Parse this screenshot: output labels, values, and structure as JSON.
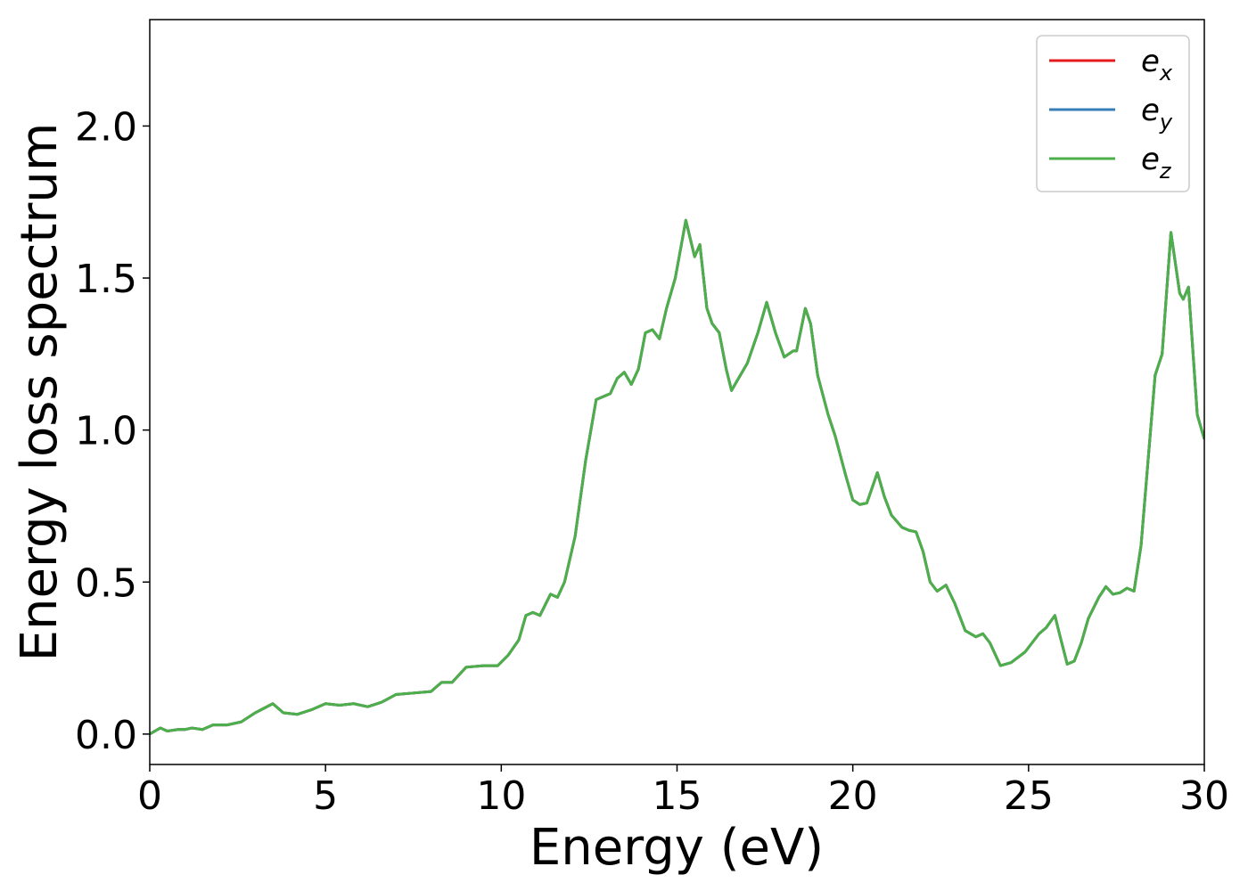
{
  "chart_data": {
    "type": "line",
    "xlabel": "Energy (eV)",
    "ylabel": "Energy loss spectrum",
    "xlim": [
      0,
      30
    ],
    "ylim": [
      -0.1,
      2.35
    ],
    "xticks": [
      0,
      5,
      10,
      15,
      20,
      25,
      30
    ],
    "yticks": [
      {
        "value": 0,
        "label": "0.0"
      },
      0.5,
      {
        "value": 1,
        "label": "1.0"
      },
      1.5,
      {
        "value": 2,
        "label": "2.0"
      }
    ],
    "grid": false,
    "legend": "upper right",
    "x": [
      0,
      0.3,
      0.5,
      0.8,
      1.0,
      1.2,
      1.5,
      1.8,
      2.2,
      2.6,
      3.0,
      3.5,
      3.8,
      4.2,
      4.6,
      5.0,
      5.4,
      5.8,
      6.2,
      6.6,
      7.0,
      7.5,
      8.0,
      8.3,
      8.6,
      9.0,
      9.5,
      9.9,
      10.2,
      10.5,
      10.7,
      10.9,
      11.1,
      11.4,
      11.6,
      11.8,
      12.1,
      12.4,
      12.7,
      12.9,
      13.1,
      13.3,
      13.5,
      13.7,
      13.9,
      14.1,
      14.3,
      14.5,
      14.7,
      14.95,
      15.25,
      15.5,
      15.65,
      15.85,
      16.0,
      16.2,
      16.4,
      16.55,
      16.7,
      17.0,
      17.3,
      17.55,
      17.8,
      18.05,
      18.3,
      18.4,
      18.65,
      18.8,
      19.0,
      19.3,
      19.5,
      19.8,
      20.0,
      20.2,
      20.4,
      20.7,
      20.9,
      21.1,
      21.4,
      21.6,
      21.8,
      22.0,
      22.2,
      22.4,
      22.65,
      22.9,
      23.2,
      23.5,
      23.7,
      23.9,
      24.2,
      24.5,
      24.9,
      25.3,
      25.5,
      25.75,
      25.9,
      26.1,
      26.3,
      26.5,
      26.7,
      27.0,
      27.2,
      27.4,
      27.6,
      27.8,
      28.0,
      28.2,
      28.4,
      28.6,
      28.8,
      29.05,
      29.3,
      29.4,
      29.55,
      29.8,
      30.0
    ],
    "series": [
      {
        "name": "e_x",
        "color": "#e41a1c",
        "values": [
          0,
          0.02,
          0.01,
          0.015,
          0.015,
          0.02,
          0.015,
          0.03,
          0.03,
          0.04,
          0.07,
          0.1,
          0.07,
          0.065,
          0.08,
          0.1,
          0.095,
          0.1,
          0.09,
          0.105,
          0.13,
          0.135,
          0.14,
          0.17,
          0.17,
          0.22,
          0.225,
          0.225,
          0.26,
          0.31,
          0.39,
          0.4,
          0.39,
          0.46,
          0.45,
          0.5,
          0.65,
          0.9,
          1.1,
          1.11,
          1.12,
          1.17,
          1.19,
          1.15,
          1.2,
          1.32,
          1.33,
          1.3,
          1.4,
          1.5,
          1.69,
          1.57,
          1.61,
          1.4,
          1.35,
          1.32,
          1.2,
          1.13,
          1.16,
          1.22,
          1.32,
          1.42,
          1.32,
          1.24,
          1.26,
          1.26,
          1.4,
          1.35,
          1.18,
          1.05,
          0.98,
          0.85,
          0.77,
          0.755,
          0.76,
          0.86,
          0.78,
          0.72,
          0.68,
          0.67,
          0.665,
          0.6,
          0.5,
          0.47,
          0.49,
          0.43,
          0.34,
          0.32,
          0.33,
          0.3,
          0.225,
          0.235,
          0.27,
          0.33,
          0.35,
          0.39,
          0.32,
          0.23,
          0.24,
          0.3,
          0.38,
          0.45,
          0.485,
          0.46,
          0.465,
          0.48,
          0.47,
          0.62,
          0.9,
          1.18,
          1.25,
          1.65,
          1.45,
          1.43,
          1.47,
          1.05,
          0.97
        ]
      },
      {
        "name": "e_y",
        "color": "#377eb8",
        "values": [
          0,
          0.02,
          0.01,
          0.015,
          0.015,
          0.02,
          0.015,
          0.03,
          0.03,
          0.04,
          0.07,
          0.1,
          0.07,
          0.065,
          0.08,
          0.1,
          0.095,
          0.1,
          0.09,
          0.105,
          0.13,
          0.135,
          0.14,
          0.17,
          0.17,
          0.22,
          0.225,
          0.225,
          0.26,
          0.31,
          0.39,
          0.4,
          0.39,
          0.46,
          0.45,
          0.5,
          0.65,
          0.9,
          1.1,
          1.11,
          1.12,
          1.17,
          1.19,
          1.15,
          1.2,
          1.32,
          1.33,
          1.3,
          1.4,
          1.5,
          1.69,
          1.57,
          1.61,
          1.4,
          1.35,
          1.32,
          1.2,
          1.13,
          1.16,
          1.22,
          1.32,
          1.42,
          1.32,
          1.24,
          1.26,
          1.26,
          1.4,
          1.35,
          1.18,
          1.05,
          0.98,
          0.85,
          0.77,
          0.755,
          0.76,
          0.86,
          0.78,
          0.72,
          0.68,
          0.67,
          0.665,
          0.6,
          0.5,
          0.47,
          0.49,
          0.43,
          0.34,
          0.32,
          0.33,
          0.3,
          0.225,
          0.235,
          0.27,
          0.33,
          0.35,
          0.39,
          0.32,
          0.23,
          0.24,
          0.3,
          0.38,
          0.45,
          0.485,
          0.46,
          0.465,
          0.48,
          0.47,
          0.62,
          0.9,
          1.18,
          1.25,
          1.65,
          1.45,
          1.43,
          1.47,
          1.05,
          0.97
        ]
      },
      {
        "name": "e_z",
        "color": "#4daf4a",
        "values": [
          0,
          0.02,
          0.01,
          0.015,
          0.015,
          0.02,
          0.015,
          0.03,
          0.03,
          0.04,
          0.07,
          0.1,
          0.07,
          0.065,
          0.08,
          0.1,
          0.095,
          0.1,
          0.09,
          0.105,
          0.13,
          0.135,
          0.14,
          0.17,
          0.17,
          0.22,
          0.225,
          0.225,
          0.26,
          0.31,
          0.39,
          0.4,
          0.39,
          0.46,
          0.45,
          0.5,
          0.65,
          0.9,
          1.1,
          1.11,
          1.12,
          1.17,
          1.19,
          1.15,
          1.2,
          1.32,
          1.33,
          1.3,
          1.4,
          1.5,
          1.69,
          1.57,
          1.61,
          1.4,
          1.35,
          1.32,
          1.2,
          1.13,
          1.16,
          1.22,
          1.32,
          1.42,
          1.32,
          1.24,
          1.26,
          1.26,
          1.4,
          1.35,
          1.18,
          1.05,
          0.98,
          0.85,
          0.77,
          0.755,
          0.76,
          0.86,
          0.78,
          0.72,
          0.68,
          0.67,
          0.665,
          0.6,
          0.5,
          0.47,
          0.49,
          0.43,
          0.34,
          0.32,
          0.33,
          0.3,
          0.225,
          0.235,
          0.27,
          0.33,
          0.35,
          0.39,
          0.32,
          0.23,
          0.24,
          0.3,
          0.38,
          0.45,
          0.485,
          0.46,
          0.465,
          0.48,
          0.47,
          0.62,
          0.9,
          1.18,
          1.25,
          1.65,
          1.45,
          1.43,
          1.47,
          1.05,
          0.97
        ]
      }
    ]
  }
}
